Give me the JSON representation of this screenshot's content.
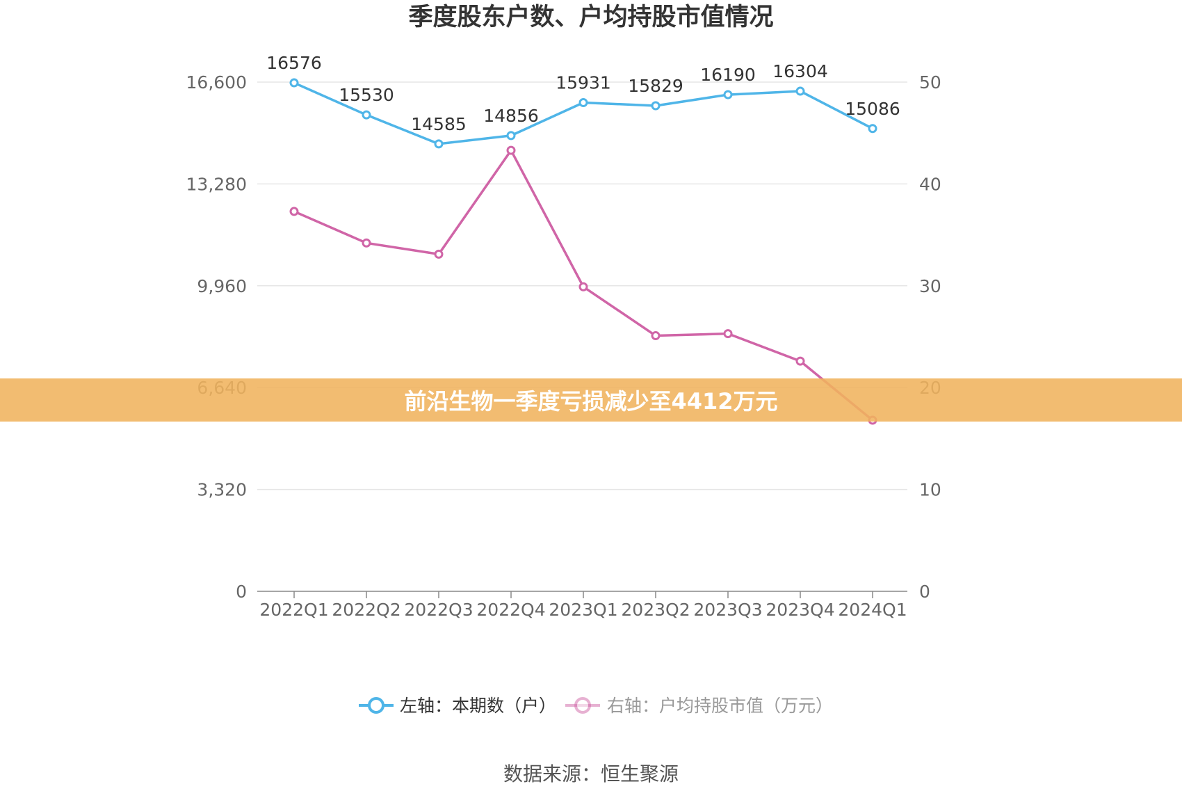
{
  "chart_data": {
    "type": "line",
    "title": "季度股东户数、户均持股市值情况",
    "categories": [
      "2022Q1",
      "2022Q2",
      "2022Q3",
      "2022Q4",
      "2023Q1",
      "2023Q2",
      "2023Q3",
      "2023Q4",
      "2024Q1"
    ],
    "left_axis": {
      "ticks": [
        "0",
        "3,320",
        "6,640",
        "9,960",
        "13,280",
        "16,600"
      ],
      "ylim": [
        0,
        16600
      ]
    },
    "right_axis": {
      "ticks": [
        "0",
        "10",
        "20",
        "30",
        "40",
        "50"
      ],
      "ylim": [
        0,
        50
      ]
    },
    "series": [
      {
        "name": "左轴：本期数（户）",
        "axis": "left",
        "color": "#4fb5e8",
        "values": [
          16576,
          15530,
          14585,
          14856,
          15931,
          15829,
          16190,
          16304,
          15086
        ],
        "labels": [
          "16576",
          "15530",
          "14585",
          "14856",
          "15931",
          "15829",
          "16190",
          "16304",
          "15086"
        ]
      },
      {
        "name": "右轴：户均持股市值（万元）",
        "axis": "right",
        "color": "#d065a7",
        "values": [
          37.3,
          34.2,
          33.1,
          43.3,
          29.9,
          25.1,
          25.3,
          22.6,
          16.8
        ]
      }
    ],
    "grid": true,
    "legend_position": "bottom"
  },
  "banner": {
    "text": "前沿生物一季度亏损减少至4412万元",
    "color": "#f0b35d"
  },
  "source": "数据来源：恒生聚源"
}
